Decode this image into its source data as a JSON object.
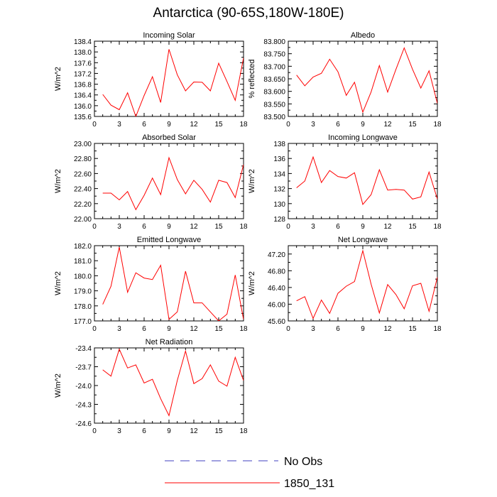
{
  "title": "Antarctica (90-65S,180W-180E)",
  "legend": {
    "items": [
      {
        "label": "No Obs",
        "color": "#4040c0",
        "style": "dashed"
      },
      {
        "label": "1850_131",
        "color": "#ff0000",
        "style": "solid"
      }
    ]
  },
  "chart_data": [
    {
      "type": "line",
      "title": "Incoming Solar",
      "ylabel": "W/m^2",
      "xlim": [
        0,
        18
      ],
      "ylim": [
        135.6,
        138.4
      ],
      "xticks": [
        "0",
        "3",
        "6",
        "9",
        "12",
        "15",
        "18"
      ],
      "yticks": [
        "135.6",
        "136.0",
        "136.4",
        "136.8",
        "137.2",
        "137.6",
        "138.0",
        "138.4"
      ],
      "series": [
        {
          "name": "1850_131",
          "color": "#ff0000",
          "x": [
            1,
            2,
            3,
            4,
            5,
            6,
            7,
            8,
            9,
            10,
            11,
            12,
            13,
            14,
            15,
            16,
            17,
            18
          ],
          "values": [
            136.42,
            136.02,
            135.85,
            136.48,
            135.6,
            136.38,
            137.08,
            136.12,
            138.1,
            137.15,
            136.55,
            136.88,
            136.87,
            136.55,
            137.58,
            136.9,
            136.2,
            137.78
          ]
        }
      ]
    },
    {
      "type": "line",
      "title": "Albedo",
      "ylabel": "% reflected",
      "xlim": [
        0,
        18
      ],
      "ylim": [
        83.5,
        83.8
      ],
      "xticks": [
        "0",
        "3",
        "6",
        "9",
        "12",
        "15",
        "18"
      ],
      "yticks": [
        "83.500",
        "83.550",
        "83.600",
        "83.650",
        "83.700",
        "83.750",
        "83.800"
      ],
      "series": [
        {
          "name": "1850_131",
          "color": "#ff0000",
          "x": [
            1,
            2,
            3,
            4,
            5,
            6,
            7,
            8,
            9,
            10,
            11,
            12,
            13,
            14,
            15,
            16,
            17,
            18
          ],
          "values": [
            83.665,
            83.622,
            83.657,
            83.672,
            83.728,
            83.678,
            83.584,
            83.636,
            83.517,
            83.598,
            83.703,
            83.597,
            83.688,
            83.773,
            83.688,
            83.613,
            83.682,
            83.552
          ]
        }
      ]
    },
    {
      "type": "line",
      "title": "Absorbed Solar",
      "ylabel": "W/m^2",
      "xlim": [
        0,
        18
      ],
      "ylim": [
        22.0,
        23.0
      ],
      "xticks": [
        "0",
        "3",
        "6",
        "9",
        "12",
        "15",
        "18"
      ],
      "yticks": [
        "22.00",
        "22.20",
        "22.40",
        "22.60",
        "22.80",
        "23.00"
      ],
      "series": [
        {
          "name": "1850_131",
          "color": "#ff0000",
          "x": [
            1,
            2,
            3,
            4,
            5,
            6,
            7,
            8,
            9,
            10,
            11,
            12,
            13,
            14,
            15,
            16,
            17,
            18
          ],
          "values": [
            22.34,
            22.34,
            22.25,
            22.36,
            22.12,
            22.31,
            22.54,
            22.32,
            22.81,
            22.52,
            22.33,
            22.51,
            22.39,
            22.22,
            22.51,
            22.48,
            22.28,
            22.72
          ]
        }
      ]
    },
    {
      "type": "line",
      "title": "Incoming Longwave",
      "ylabel": "W/m^2",
      "xlim": [
        0,
        18
      ],
      "ylim": [
        128,
        138
      ],
      "xticks": [
        "0",
        "3",
        "6",
        "9",
        "12",
        "15",
        "18"
      ],
      "yticks": [
        "128",
        "130",
        "132",
        "134",
        "136",
        "138"
      ],
      "series": [
        {
          "name": "1850_131",
          "color": "#ff0000",
          "x": [
            1,
            2,
            3,
            4,
            5,
            6,
            7,
            8,
            9,
            10,
            11,
            12,
            13,
            14,
            15,
            16,
            17,
            18
          ],
          "values": [
            132.1,
            133.0,
            136.2,
            132.8,
            134.4,
            133.6,
            133.4,
            134.1,
            129.9,
            131.2,
            134.5,
            131.8,
            131.9,
            131.8,
            130.6,
            130.9,
            134.2,
            130.6
          ]
        }
      ]
    },
    {
      "type": "line",
      "title": "Emitted Longwave",
      "ylabel": "W/m^2",
      "xlim": [
        0,
        18
      ],
      "ylim": [
        177.0,
        182.0
      ],
      "xticks": [
        "0",
        "3",
        "6",
        "9",
        "12",
        "15",
        "18"
      ],
      "yticks": [
        "177.0",
        "178.0",
        "179.0",
        "180.0",
        "181.0",
        "182.0"
      ],
      "series": [
        {
          "name": "1850_131",
          "color": "#ff0000",
          "x": [
            1,
            2,
            3,
            4,
            5,
            6,
            7,
            8,
            9,
            10,
            11,
            12,
            13,
            14,
            15,
            16,
            17,
            18
          ],
          "values": [
            178.1,
            179.3,
            181.9,
            178.9,
            180.2,
            179.85,
            179.75,
            180.7,
            177.1,
            177.6,
            180.3,
            178.2,
            178.2,
            177.6,
            177.0,
            177.45,
            180.05,
            177.1
          ]
        }
      ]
    },
    {
      "type": "line",
      "title": "Net Longwave",
      "ylabel": "W/m^2",
      "xlim": [
        0,
        18
      ],
      "ylim": [
        45.6,
        47.4
      ],
      "xticks": [
        "0",
        "3",
        "6",
        "9",
        "12",
        "15",
        "18"
      ],
      "yticks": [
        "45.60",
        "46.00",
        "46.40",
        "46.80",
        "47.20"
      ],
      "series": [
        {
          "name": "1850_131",
          "color": "#ff0000",
          "x": [
            1,
            2,
            3,
            4,
            5,
            6,
            7,
            8,
            9,
            10,
            11,
            12,
            13,
            14,
            15,
            16,
            17,
            18
          ],
          "values": [
            46.08,
            46.18,
            45.66,
            46.1,
            45.78,
            46.26,
            46.43,
            46.54,
            47.28,
            46.48,
            45.79,
            46.47,
            46.23,
            45.89,
            46.44,
            46.5,
            45.83,
            46.65
          ]
        }
      ]
    },
    {
      "type": "line",
      "title": "Net Radiation",
      "ylabel": "W/m^2",
      "xlim": [
        0,
        18
      ],
      "ylim": [
        -24.6,
        -23.4
      ],
      "xticks": [
        "0",
        "3",
        "6",
        "9",
        "12",
        "15",
        "18"
      ],
      "yticks": [
        "-24.6",
        "-24.3",
        "-24.0",
        "-23.7",
        "-23.4"
      ],
      "series": [
        {
          "name": "1850_131",
          "color": "#ff0000",
          "x": [
            1,
            2,
            3,
            4,
            5,
            6,
            7,
            8,
            9,
            10,
            11,
            12,
            13,
            14,
            15,
            16,
            17,
            18
          ],
          "values": [
            -23.75,
            -23.85,
            -23.42,
            -23.72,
            -23.67,
            -23.96,
            -23.9,
            -24.21,
            -24.48,
            -23.92,
            -23.45,
            -23.97,
            -23.89,
            -23.67,
            -23.93,
            -24.01,
            -23.55,
            -23.92
          ]
        }
      ]
    }
  ]
}
